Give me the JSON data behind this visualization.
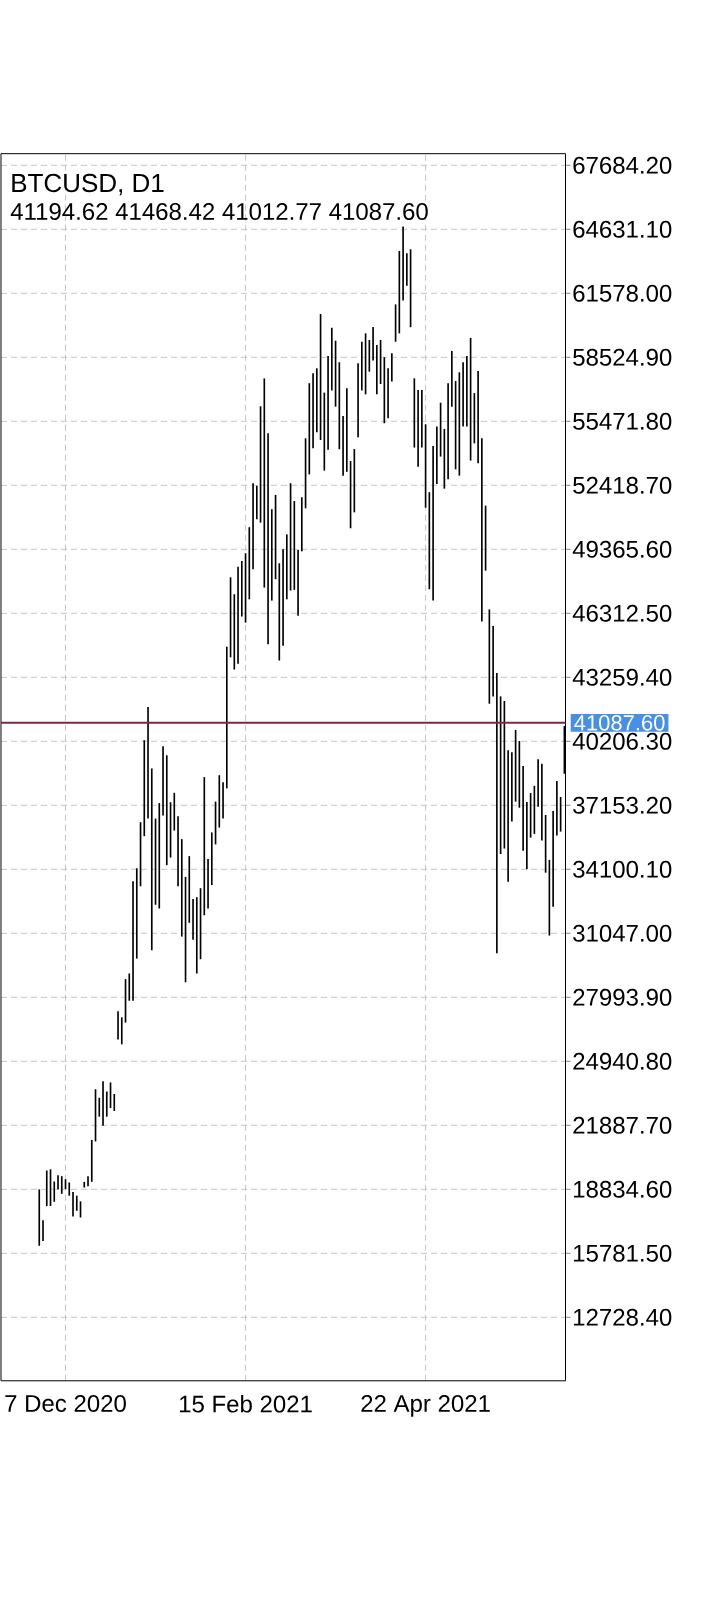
{
  "chart_data": {
    "type": "bar",
    "title": "BTCUSD, D1",
    "subtitle": "41194.62 41468.42 41012.77 41087.60",
    "categories": [
      null,
      null,
      null,
      null,
      null,
      null,
      null,
      "7 Dec 2020",
      null,
      null,
      null,
      null,
      null,
      null,
      null,
      null,
      null,
      null,
      null,
      null,
      null,
      null,
      null,
      null,
      null,
      null,
      null,
      null,
      null,
      null,
      null,
      null,
      null,
      null,
      null,
      null,
      null,
      null,
      null,
      null,
      null,
      null,
      null,
      null,
      null,
      null,
      null,
      null,
      null,
      null,
      null,
      null,
      null,
      null,
      null,
      "15 Feb 2021",
      null,
      null,
      null,
      null,
      null,
      null,
      null,
      null,
      null,
      null,
      null,
      null,
      null,
      null,
      null,
      null,
      null,
      null,
      null,
      null,
      null,
      null,
      null,
      null,
      null,
      null,
      null,
      null,
      null,
      null,
      null,
      null,
      null,
      null,
      null,
      null,
      null,
      null,
      null,
      null,
      null,
      null,
      null,
      null,
      null,
      null,
      null,
      "22 Apr 2021",
      null,
      null,
      null,
      null,
      null,
      null,
      null,
      null,
      null,
      null,
      null,
      null,
      null,
      null,
      null,
      null,
      null,
      null,
      null,
      null,
      null,
      null,
      null,
      null,
      null,
      null,
      null,
      null,
      null,
      null,
      null,
      null,
      null,
      null,
      null,
      null,
      null
    ],
    "base": [
      16140,
      16370,
      18030,
      18040,
      18240,
      18830,
      18620,
      18850,
      18530,
      17540,
      17810,
      17490,
      18920,
      18980,
      19190,
      21120,
      22300,
      21870,
      22300,
      22710,
      22570,
      25980,
      25750,
      26790,
      27830,
      27830,
      29840,
      33290,
      35680,
      36520,
      30240,
      32410,
      32230,
      36670,
      34300,
      34660,
      35950,
      33290,
      30890,
      28710,
      31550,
      30740,
      29130,
      29810,
      31910,
      32230,
      33350,
      35290,
      36090,
      36520,
      37960,
      44210,
      43630,
      43910,
      46160,
      45870,
      46980,
      48410,
      50800,
      50640,
      47540,
      44840,
      46920,
      47940,
      44060,
      44770,
      46980,
      47400,
      47430,
      46200,
      49270,
      51320,
      52940,
      54190,
      54950,
      54580,
      53120,
      54110,
      56940,
      56170,
      54140,
      52880,
      53070,
      50370,
      51130,
      54710,
      56940,
      56760,
      57840,
      58370,
      56760,
      57250,
      55380,
      55620,
      57370,
      59270,
      59670,
      61230,
      61940,
      59960,
      54220,
      53310,
      54220,
      51350,
      47460,
      46920,
      52480,
      53790,
      52260,
      52710,
      56170,
      53180,
      52880,
      55220,
      55220,
      53600,
      54420,
      53470,
      45920,
      48350,
      42000,
      42340,
      30090,
      34830,
      35090,
      33510,
      36380,
      37330,
      37040,
      34990,
      34100,
      35610,
      35790,
      37090,
      35470,
      33940,
      30940,
      32320,
      35710,
      35900,
      38660
    ],
    "values": [
      2690,
      990,
      1700,
      1750,
      970,
      670,
      840,
      470,
      630,
      1170,
      720,
      770,
      270,
      480,
      2000,
      2490,
      900,
      2120,
      1200,
      1220,
      810,
      1350,
      1290,
      2070,
      1300,
      5700,
      4310,
      3060,
      4580,
      5320,
      8670,
      4110,
      5030,
      3300,
      5240,
      2640,
      1800,
      3340,
      4650,
      5030,
      3180,
      1940,
      3640,
      3390,
      6590,
      2360,
      2510,
      2040,
      2500,
      1730,
      6760,
      3820,
      3590,
      4630,
      2650,
      3310,
      3440,
      4110,
      1600,
      5550,
      9980,
      10060,
      4360,
      4020,
      4640,
      4600,
      3100,
      5120,
      4240,
      3140,
      2580,
      3340,
      4350,
      3570,
      3050,
      6010,
      3720,
      4480,
      3000,
      3150,
      4150,
      2850,
      3980,
      3210,
      3020,
      3530,
      2330,
      2910,
      1510,
      1600,
      2350,
      2100,
      3150,
      2380,
      1350,
      1780,
      3930,
      3530,
      1550,
      3720,
      3300,
      3660,
      2750,
      3980,
      4630,
      7380,
      2750,
      2570,
      2850,
      4580,
      2660,
      4220,
      4930,
      3070,
      3370,
      5850,
      2400,
      4400,
      8740,
      3100,
      4500,
      3370,
      13380,
      7520,
      7040,
      6270,
      3300,
      3420,
      3180,
      4040,
      3210,
      2130,
      2290,
      2260,
      3660,
      2750,
      3610,
      4560,
      2600,
      1650,
      2280
    ],
    "color": "#000000",
    "ylim": [
      9700,
      68240
    ],
    "yticks": [
      {
        "value": 12728.4,
        "label": "12728.40"
      },
      {
        "value": 15781.5,
        "label": "15781.50"
      },
      {
        "value": 18834.6,
        "label": "18834.60"
      },
      {
        "value": 21887.7,
        "label": "21887.70"
      },
      {
        "value": 24940.8,
        "label": "24940.80"
      },
      {
        "value": 27993.9,
        "label": "27993.90"
      },
      {
        "value": 31047,
        "label": "31047.00"
      },
      {
        "value": 34100.1,
        "label": "34100.10"
      },
      {
        "value": 37153.2,
        "label": "37153.20"
      },
      {
        "value": 40206.3,
        "label": "40206.30"
      },
      {
        "value": 43259.4,
        "label": "43259.40"
      },
      {
        "value": 46312.5,
        "label": "46312.50"
      },
      {
        "value": 49365.6,
        "label": "49365.60"
      },
      {
        "value": 52418.7,
        "label": "52418.70"
      },
      {
        "value": 55471.8,
        "label": "55471.80"
      },
      {
        "value": 58524.9,
        "label": "58524.90"
      },
      {
        "value": 61578,
        "label": "61578.00"
      },
      {
        "value": 64631.1,
        "label": "64631.10"
      },
      {
        "value": 67684.2,
        "label": "67684.20"
      }
    ],
    "grid": true,
    "ref_lines": [
      {
        "axis": "y",
        "value": 41087.6,
        "label": "41087.60",
        "color": "#7a2a42"
      }
    ]
  }
}
